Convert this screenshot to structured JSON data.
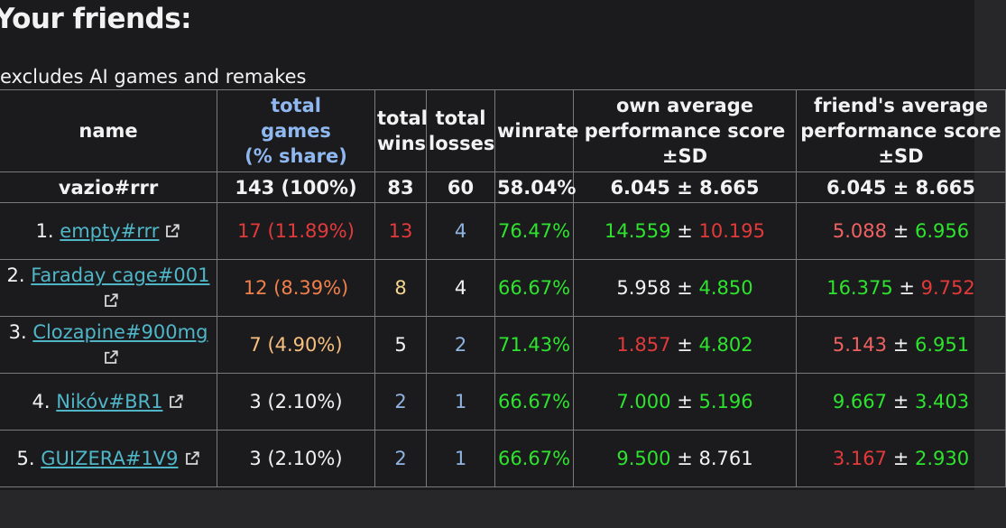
{
  "title": "Your friends:",
  "subtitle": "excludes AI games and remakes",
  "table": {
    "headers": [
      "name",
      "total games (% share)",
      "total wins",
      "total losses",
      "winrate",
      "own average performance score ±SD",
      "friend's average performance score ±SD"
    ],
    "summary": {
      "name": "vazio#rrr",
      "games": "143 (100%)",
      "wins": "83",
      "losses": "60",
      "winrate": "58.04%",
      "own": [
        "6.045",
        "±",
        "8.665"
      ],
      "friend": [
        "6.045",
        "±",
        "8.665"
      ]
    },
    "rows": [
      {
        "rank": "1.",
        "name": "empty#rrr",
        "games": "17 (11.89%)",
        "wins": "13",
        "losses": "4",
        "winrate": "76.47%",
        "own": [
          "14.559",
          "±",
          "10.195"
        ],
        "friend": [
          "5.088",
          "±",
          "6.956"
        ]
      },
      {
        "rank": "2.",
        "name": "Faraday cage#001",
        "games": "12 (8.39%)",
        "wins": "8",
        "losses": "4",
        "winrate": "66.67%",
        "own": [
          "5.958",
          "±",
          "4.850"
        ],
        "friend": [
          "16.375",
          "±",
          "9.752"
        ]
      },
      {
        "rank": "3.",
        "name": "Clozapine#900mg",
        "games": "7 (4.90%)",
        "wins": "5",
        "losses": "2",
        "winrate": "71.43%",
        "own": [
          "1.857",
          "±",
          "4.802"
        ],
        "friend": [
          "5.143",
          "±",
          "6.951"
        ]
      },
      {
        "rank": "4.",
        "name": "Nikóv#BR1",
        "games": "3 (2.10%)",
        "wins": "2",
        "losses": "1",
        "winrate": "66.67%",
        "own": [
          "7.000",
          "±",
          "5.196"
        ],
        "friend": [
          "9.667",
          "±",
          "3.403"
        ]
      },
      {
        "rank": "5.",
        "name": "GUIZERA#1V9",
        "games": "3 (2.10%)",
        "wins": "2",
        "losses": "1",
        "winrate": "66.67%",
        "own": [
          "9.500",
          "±",
          "8.761"
        ],
        "friend": [
          "3.167",
          "±",
          "2.930"
        ]
      }
    ]
  }
}
